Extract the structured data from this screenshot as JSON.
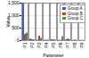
{
  "chart_data": {
    "type": "bar",
    "x_label": "Parameter",
    "y_label": "Value",
    "categories": [
      "P1",
      "P2",
      "P3",
      "P4",
      "P5",
      "P6",
      "P7",
      "P8",
      "P9"
    ],
    "series": [
      {
        "name": "Group A",
        "color": "#3b5bdb",
        "values": [
          1480,
          60,
          20,
          10,
          40,
          15,
          30,
          10,
          5
        ]
      },
      {
        "name": "Group B",
        "color": "#e03131",
        "values": [
          250,
          40,
          180,
          20,
          30,
          10,
          60,
          20,
          10
        ]
      },
      {
        "name": "Group C",
        "color": "#2f9e44",
        "values": [
          300,
          30,
          90,
          15,
          20,
          160,
          40,
          15,
          5
        ]
      }
    ],
    "ylim": [
      0,
      1500
    ],
    "yticks": [
      0,
      500,
      1000,
      1500
    ],
    "grid": true,
    "legend": "top-right"
  }
}
